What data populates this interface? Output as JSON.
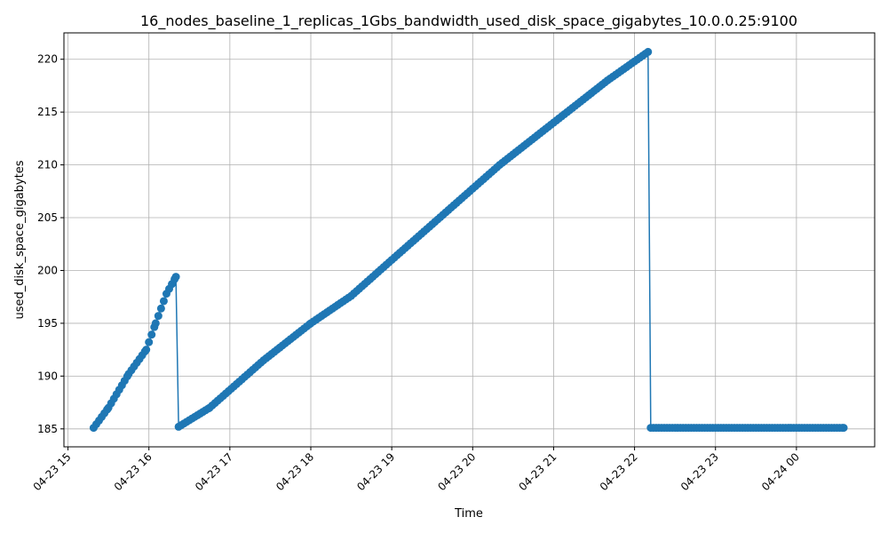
{
  "chart_data": {
    "type": "line",
    "title": "16_nodes_baseline_1_replicas_1Gbs_bandwidth_used_disk_space_gigabytes_10.0.0.25:9100",
    "xlabel": "Time",
    "ylabel": "used_disk_space_gigabytes",
    "grid": true,
    "legend": "none",
    "marker": "circle",
    "color": "#1f77b4",
    "x_range": [
      "2023-04-23 14:57",
      "2023-04-24 00:58"
    ],
    "ylim": [
      183.3,
      222.5
    ],
    "x_ticks": [
      {
        "t": "2023-04-23 15:00",
        "label": "04-23 15"
      },
      {
        "t": "2023-04-23 16:00",
        "label": "04-23 16"
      },
      {
        "t": "2023-04-23 17:00",
        "label": "04-23 17"
      },
      {
        "t": "2023-04-23 18:00",
        "label": "04-23 18"
      },
      {
        "t": "2023-04-23 19:00",
        "label": "04-23 19"
      },
      {
        "t": "2023-04-23 20:00",
        "label": "04-23 20"
      },
      {
        "t": "2023-04-23 21:00",
        "label": "04-23 21"
      },
      {
        "t": "2023-04-23 22:00",
        "label": "04-23 22"
      },
      {
        "t": "2023-04-23 23:00",
        "label": "04-23 23"
      },
      {
        "t": "2023-04-24 00:00",
        "label": "04-24 00"
      }
    ],
    "y_ticks": [
      185,
      190,
      195,
      200,
      205,
      210,
      215,
      220
    ],
    "series": [
      {
        "sample_interval_minutes": 2,
        "segments": [
          {
            "points": [
              {
                "x": "2023-04-23 15:19",
                "y": 185.1
              },
              {
                "x": "2023-04-23 15:30",
                "y": 187.0
              },
              {
                "x": "2023-04-23 15:45",
                "y": 190.2
              },
              {
                "x": "2023-04-23 15:58",
                "y": 192.5
              },
              {
                "x": "2023-04-23 16:05",
                "y": 195.0
              },
              {
                "x": "2023-04-23 16:13",
                "y": 197.8
              },
              {
                "x": "2023-04-23 16:20",
                "y": 199.4
              }
            ]
          },
          {
            "points": [
              {
                "x": "2023-04-23 16:22",
                "y": 185.2
              },
              {
                "x": "2023-04-23 16:45",
                "y": 187.0
              },
              {
                "x": "2023-04-23 17:25",
                "y": 191.5
              },
              {
                "x": "2023-04-23 18:00",
                "y": 195.0
              },
              {
                "x": "2023-04-23 18:30",
                "y": 197.6
              },
              {
                "x": "2023-04-23 19:00",
                "y": 201.0
              },
              {
                "x": "2023-04-23 19:40",
                "y": 205.5
              },
              {
                "x": "2023-04-23 20:20",
                "y": 210.0
              },
              {
                "x": "2023-04-23 21:00",
                "y": 214.0
              },
              {
                "x": "2023-04-23 21:40",
                "y": 218.0
              },
              {
                "x": "2023-04-23 22:10",
                "y": 220.7
              }
            ]
          },
          {
            "points": [
              {
                "x": "2023-04-23 22:12",
                "y": 185.1
              },
              {
                "x": "2023-04-24 00:35",
                "y": 185.1
              }
            ]
          }
        ]
      }
    ]
  }
}
